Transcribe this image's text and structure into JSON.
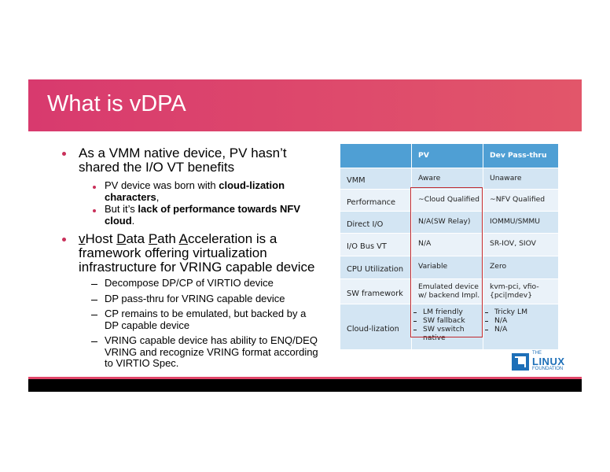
{
  "header": {
    "title": "What is vDPA"
  },
  "bullets": [
    {
      "text": "As a VMM native device, PV hasn’t shared the I/O VT benefits",
      "sub": [
        [
          "PV device was born with ",
          "cloud-lization characters",
          ","
        ],
        [
          "But it’s ",
          "lack of performance towards NFV cloud",
          "."
        ]
      ]
    },
    {
      "text": [
        "v",
        "Host ",
        "D",
        "ata ",
        "P",
        "ath ",
        "A",
        "cceleration is a framework offering virtualization infrastructure for VRING capable device"
      ],
      "sub": [
        "Decompose DP/CP of VIRTIO device",
        "DP pass-thru for VRING capable device",
        "CP remains to be emulated, but backed by a DP capable device",
        "VRING capable device has ability to ENQ/DEQ VRING and recognize VRING format according to VIRTIO Spec."
      ]
    }
  ],
  "table": {
    "columns": [
      "PV",
      "Dev Pass-thru"
    ],
    "rows": [
      {
        "label": "VMM",
        "cells": [
          "Aware",
          "Unaware"
        ]
      },
      {
        "label": "Performance",
        "cells": [
          "~Cloud Qualified",
          "~NFV Qualified"
        ]
      },
      {
        "label": "Direct I/O",
        "cells": [
          "N/A(SW Relay)",
          "IOMMU/SMMU"
        ]
      },
      {
        "label": "I/O Bus VT",
        "cells": [
          "N/A",
          "SR-IOV, SIOV"
        ]
      },
      {
        "label": "CPU Utilization",
        "cells": [
          "Variable",
          "Zero"
        ]
      },
      {
        "label": "SW framework",
        "cells": [
          "Emulated device w/ backend Impl.",
          "kvm-pci, vfio-{pci|mdev}"
        ]
      },
      {
        "label": "Cloud-lization",
        "cells": [
          [
            "LM friendly",
            "SW fallback",
            "SW vswitch native"
          ],
          [
            "Tricky LM",
            "N/A",
            "N/A"
          ]
        ]
      }
    ]
  },
  "logo": {
    "line1": "THE",
    "line2": "LINUX",
    "line3": "FOUNDATION"
  }
}
